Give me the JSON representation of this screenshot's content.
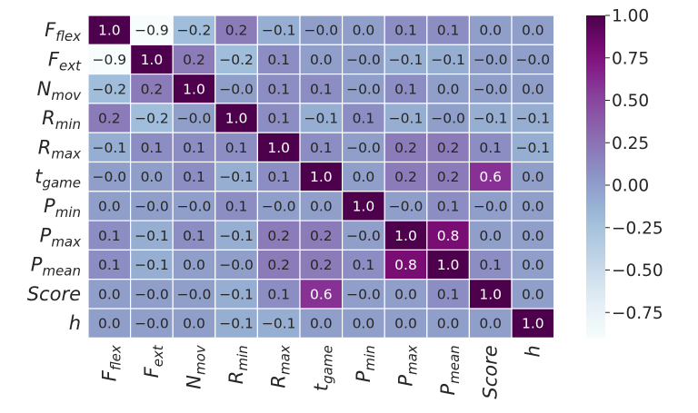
{
  "chart_data": {
    "type": "heatmap",
    "title": "",
    "rows": [
      {
        "base": "F",
        "sub": "flex"
      },
      {
        "base": "F",
        "sub": "ext"
      },
      {
        "base": "N",
        "sub": "mov"
      },
      {
        "base": "R",
        "sub": "min"
      },
      {
        "base": "R",
        "sub": "max"
      },
      {
        "base": "t",
        "sub": "game"
      },
      {
        "base": "P",
        "sub": "min"
      },
      {
        "base": "P",
        "sub": "max"
      },
      {
        "base": "P",
        "sub": "mean"
      },
      {
        "base": "Score",
        "sub": ""
      },
      {
        "base": "h",
        "sub": ""
      }
    ],
    "values": [
      [
        "1.0",
        "-0.9",
        "-0.2",
        "0.2",
        "-0.1",
        "-0.0",
        "0.0",
        "0.1",
        "0.1",
        "0.0",
        "0.0"
      ],
      [
        "-0.9",
        "1.0",
        "0.2",
        "-0.2",
        "0.1",
        "0.0",
        "-0.0",
        "-0.1",
        "-0.1",
        "-0.0",
        "-0.0"
      ],
      [
        "-0.2",
        "0.2",
        "1.0",
        "-0.0",
        "0.1",
        "0.1",
        "-0.0",
        "0.1",
        "0.0",
        "-0.0",
        "0.0"
      ],
      [
        "0.2",
        "-0.2",
        "-0.0",
        "1.0",
        "0.1",
        "-0.1",
        "0.1",
        "-0.1",
        "-0.0",
        "-0.1",
        "-0.1"
      ],
      [
        "-0.1",
        "0.1",
        "0.1",
        "0.1",
        "1.0",
        "0.1",
        "-0.0",
        "0.2",
        "0.2",
        "0.1",
        "-0.1"
      ],
      [
        "-0.0",
        "0.0",
        "0.1",
        "-0.1",
        "0.1",
        "1.0",
        "0.0",
        "0.2",
        "0.2",
        "0.6",
        "0.0"
      ],
      [
        "0.0",
        "-0.0",
        "-0.0",
        "0.1",
        "-0.0",
        "0.0",
        "1.0",
        "-0.0",
        "0.1",
        "-0.0",
        "0.0"
      ],
      [
        "0.1",
        "-0.1",
        "0.1",
        "-0.1",
        "0.2",
        "0.2",
        "-0.0",
        "1.0",
        "0.8",
        "0.0",
        "0.0"
      ],
      [
        "0.1",
        "-0.1",
        "0.0",
        "-0.0",
        "0.2",
        "0.2",
        "0.1",
        "0.8",
        "1.0",
        "0.1",
        "0.0"
      ],
      [
        "0.0",
        "-0.0",
        "-0.0",
        "-0.1",
        "0.1",
        "0.6",
        "-0.0",
        "0.0",
        "0.1",
        "1.0",
        "0.0"
      ],
      [
        "0.0",
        "-0.0",
        "0.0",
        "-0.1",
        "-0.1",
        "0.0",
        "0.0",
        "0.0",
        "0.0",
        "0.0",
        "1.0"
      ]
    ],
    "colorbar": {
      "range": [
        -0.9,
        1.0
      ],
      "ticks": [
        "1.00",
        "0.75",
        "0.50",
        "0.25",
        "0.00",
        "−0.25",
        "−0.50",
        "−0.75"
      ],
      "tick_values": [
        1.0,
        0.75,
        0.5,
        0.25,
        0.0,
        -0.25,
        -0.5,
        -0.75
      ],
      "colormap": "BuPu"
    },
    "grid": true,
    "cell_border_color": "#ffffff"
  }
}
